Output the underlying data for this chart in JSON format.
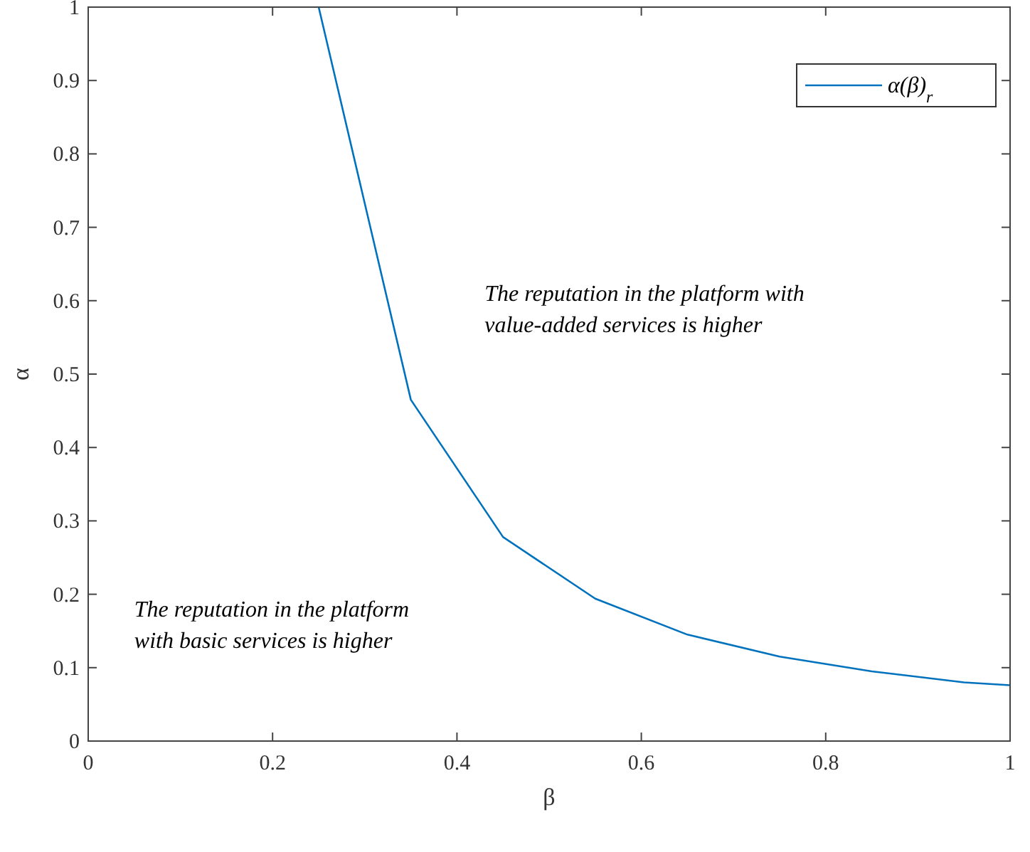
{
  "chart_data": {
    "type": "line",
    "xlabel": "β",
    "ylabel": "α",
    "xlim": [
      0,
      1
    ],
    "ylim": [
      0,
      1
    ],
    "xticks": [
      0,
      0.2,
      0.4,
      0.6,
      0.8,
      1
    ],
    "yticks": [
      0,
      0.1,
      0.2,
      0.3,
      0.4,
      0.5,
      0.6,
      0.7,
      0.8,
      0.9,
      1
    ],
    "grid": false,
    "legend": "top right",
    "line_style": "solid",
    "series": [
      {
        "name": "α(β)$_{r}$",
        "color": "#0072bd",
        "x": [
          0.25,
          0.35,
          0.45,
          0.55,
          0.65,
          0.75,
          0.85,
          0.95,
          1.0
        ],
        "values": [
          1.0,
          0.465,
          0.278,
          0.194,
          0.145,
          0.115,
          0.095,
          0.08,
          0.076
        ]
      }
    ],
    "annotations": [
      "The reputation in the platform with\nvalue-added services is higher",
      "The reputation in the platform\nwith basic services is higher"
    ]
  }
}
